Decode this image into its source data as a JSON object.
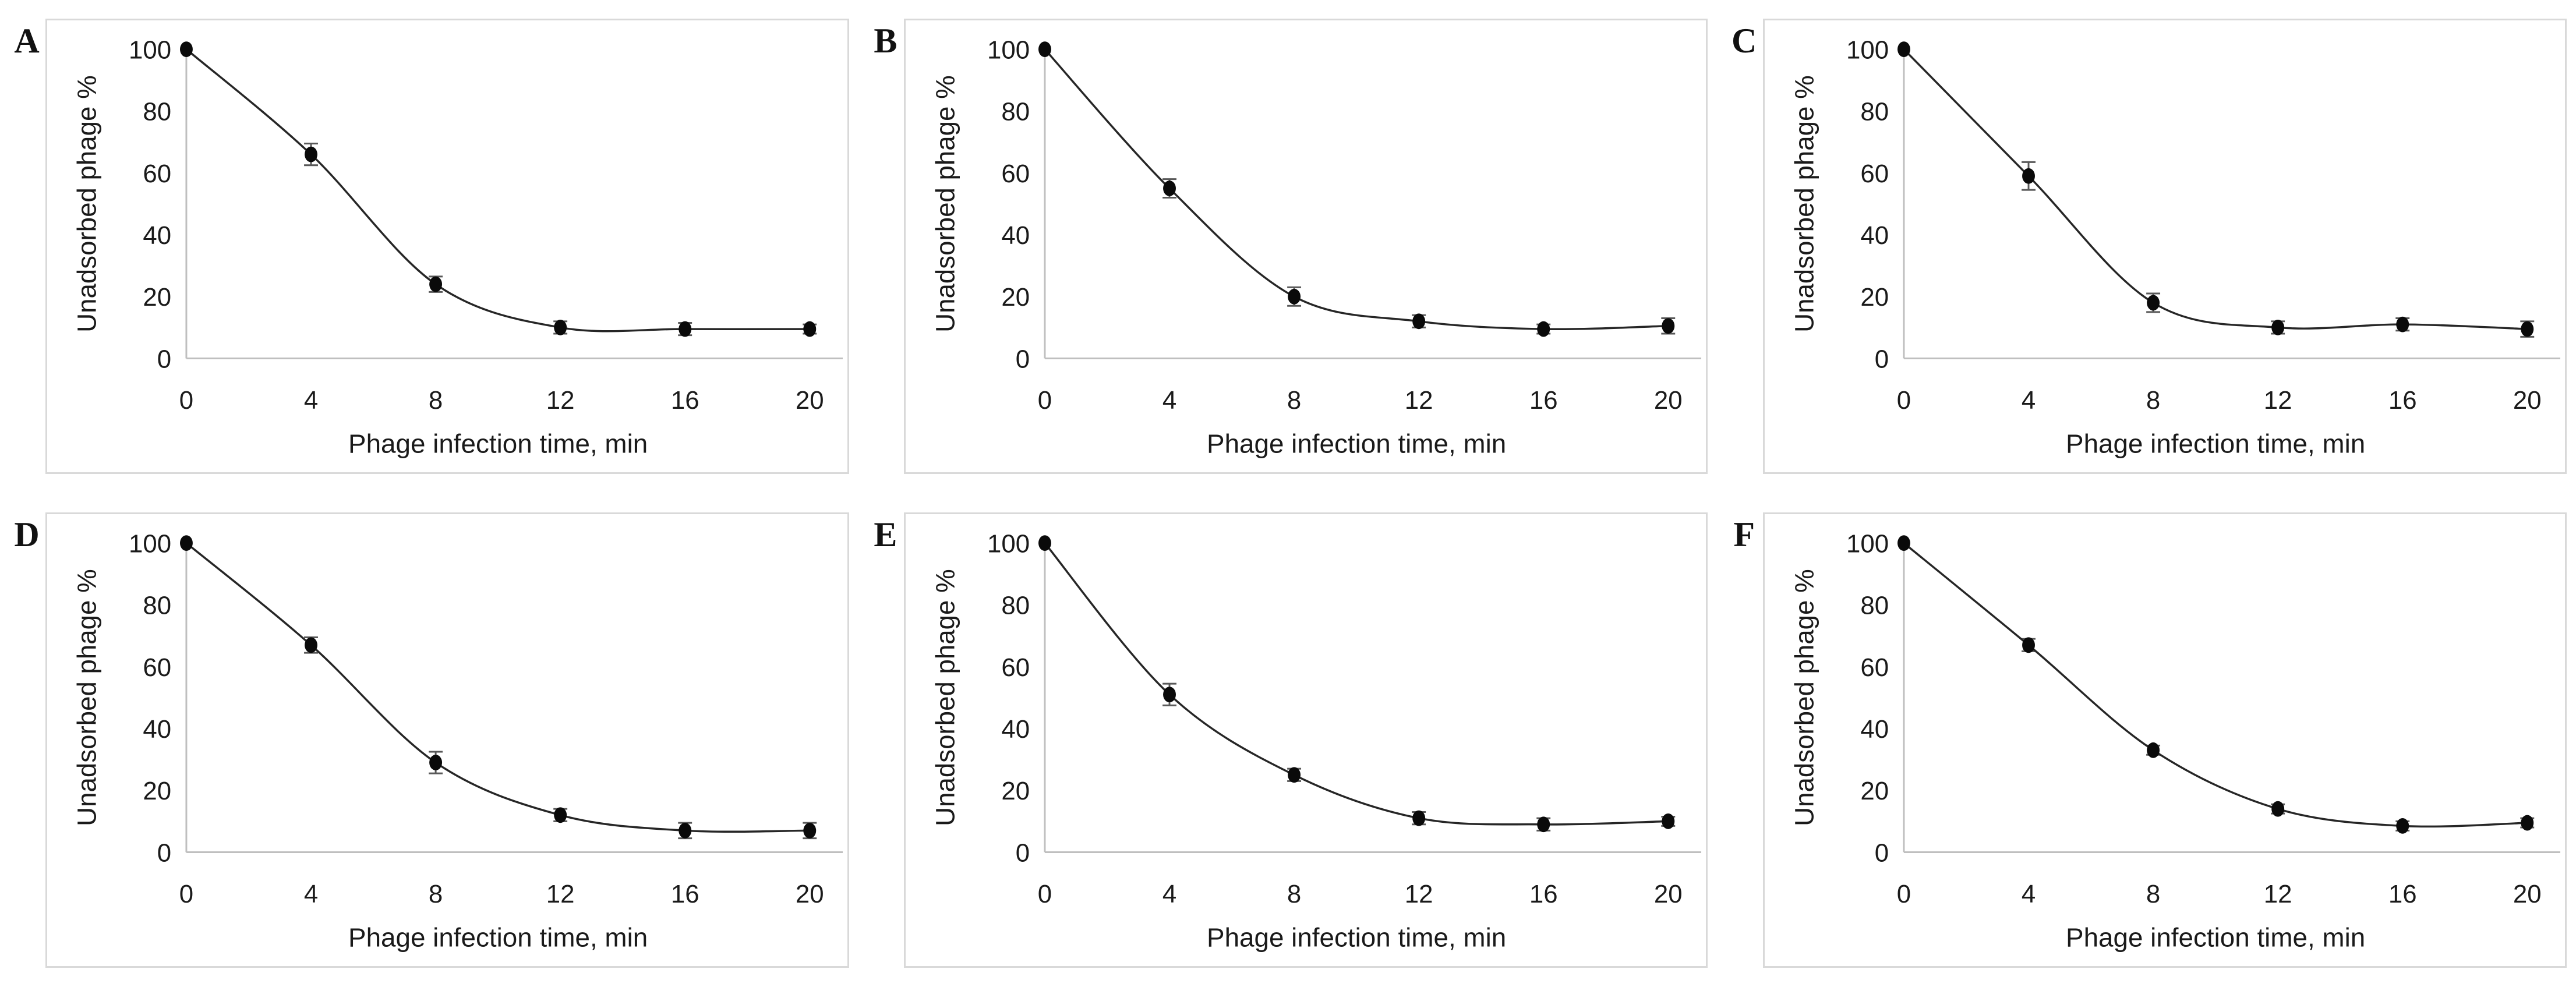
{
  "figure": {
    "background": "#ffffff",
    "panel_border_color": "#d9d9d9",
    "axis_color": "#bfbfbf",
    "text_color": "#1a1a1a",
    "line_color": "#262626",
    "marker_color": "#0a0a0a",
    "error_bar_color": "#595959"
  },
  "chart_data": [
    {
      "type": "line",
      "panel_label": "A",
      "title": "",
      "xlabel": "Phage infection time, min",
      "ylabel": "Unadsorbed phage %",
      "x": [
        0,
        4,
        8,
        12,
        16,
        20
      ],
      "values": [
        100,
        66,
        24,
        10,
        9.5,
        9.5
      ],
      "errors": [
        0,
        3.5,
        2.5,
        2,
        2,
        1.5
      ],
      "xticks": [
        0,
        4,
        8,
        12,
        16,
        20
      ],
      "yticks": [
        0,
        20,
        40,
        60,
        80,
        100
      ],
      "xlim": [
        0,
        20
      ],
      "ylim": [
        0,
        100
      ],
      "grid": false,
      "legend": null,
      "marker": "filled-circle",
      "line_style": "smooth"
    },
    {
      "type": "line",
      "panel_label": "B",
      "title": "",
      "xlabel": "Phage infection time, min",
      "ylabel": "Unadsorbed phage %",
      "x": [
        0,
        4,
        8,
        12,
        16,
        20
      ],
      "values": [
        100,
        55,
        20,
        12,
        9.5,
        10.5
      ],
      "errors": [
        0,
        3,
        3,
        2,
        1.5,
        2.5
      ],
      "xticks": [
        0,
        4,
        8,
        12,
        16,
        20
      ],
      "yticks": [
        0,
        20,
        40,
        60,
        80,
        100
      ],
      "xlim": [
        0,
        20
      ],
      "ylim": [
        0,
        100
      ],
      "grid": false,
      "legend": null,
      "marker": "filled-circle",
      "line_style": "smooth"
    },
    {
      "type": "line",
      "panel_label": "C",
      "title": "",
      "xlabel": "Phage infection time, min",
      "ylabel": "Unadsorbed phage %",
      "x": [
        0,
        4,
        8,
        12,
        16,
        20
      ],
      "values": [
        100,
        59,
        18,
        10,
        11,
        9.5
      ],
      "errors": [
        0,
        4.5,
        3,
        2,
        2,
        2.5
      ],
      "xticks": [
        0,
        4,
        8,
        12,
        16,
        20
      ],
      "yticks": [
        0,
        20,
        40,
        60,
        80,
        100
      ],
      "xlim": [
        0,
        20
      ],
      "ylim": [
        0,
        100
      ],
      "grid": false,
      "legend": null,
      "marker": "filled-circle",
      "line_style": "smooth"
    },
    {
      "type": "line",
      "panel_label": "D",
      "title": "",
      "xlabel": "Phage infection time, min",
      "ylabel": "Unadsorbed phage %",
      "x": [
        0,
        4,
        8,
        12,
        16,
        20
      ],
      "values": [
        100,
        67,
        29,
        12,
        7,
        7
      ],
      "errors": [
        0,
        2.5,
        3.5,
        2,
        2.5,
        2.5
      ],
      "xticks": [
        0,
        4,
        8,
        12,
        16,
        20
      ],
      "yticks": [
        0,
        20,
        40,
        60,
        80,
        100
      ],
      "xlim": [
        0,
        20
      ],
      "ylim": [
        0,
        100
      ],
      "grid": false,
      "legend": null,
      "marker": "filled-circle",
      "line_style": "smooth"
    },
    {
      "type": "line",
      "panel_label": "E",
      "title": "",
      "xlabel": "Phage infection time, min",
      "ylabel": "Unadsorbed phage %",
      "x": [
        0,
        4,
        8,
        12,
        16,
        20
      ],
      "values": [
        100,
        51,
        25,
        11,
        9,
        10
      ],
      "errors": [
        0,
        3.5,
        2,
        2,
        2,
        1.5
      ],
      "xticks": [
        0,
        4,
        8,
        12,
        16,
        20
      ],
      "yticks": [
        0,
        20,
        40,
        60,
        80,
        100
      ],
      "xlim": [
        0,
        20
      ],
      "ylim": [
        0,
        100
      ],
      "grid": false,
      "legend": null,
      "marker": "filled-circle",
      "line_style": "smooth"
    },
    {
      "type": "line",
      "panel_label": "F",
      "title": "",
      "xlabel": "Phage infection time, min",
      "ylabel": "Unadsorbed phage %",
      "x": [
        0,
        4,
        8,
        12,
        16,
        20
      ],
      "values": [
        100,
        67,
        33,
        14,
        8.5,
        9.5
      ],
      "errors": [
        0,
        2,
        1.5,
        1.5,
        1.5,
        1.5
      ],
      "xticks": [
        0,
        4,
        8,
        12,
        16,
        20
      ],
      "yticks": [
        0,
        20,
        40,
        60,
        80,
        100
      ],
      "xlim": [
        0,
        20
      ],
      "ylim": [
        0,
        100
      ],
      "grid": false,
      "legend": null,
      "marker": "filled-circle",
      "line_style": "smooth"
    }
  ]
}
